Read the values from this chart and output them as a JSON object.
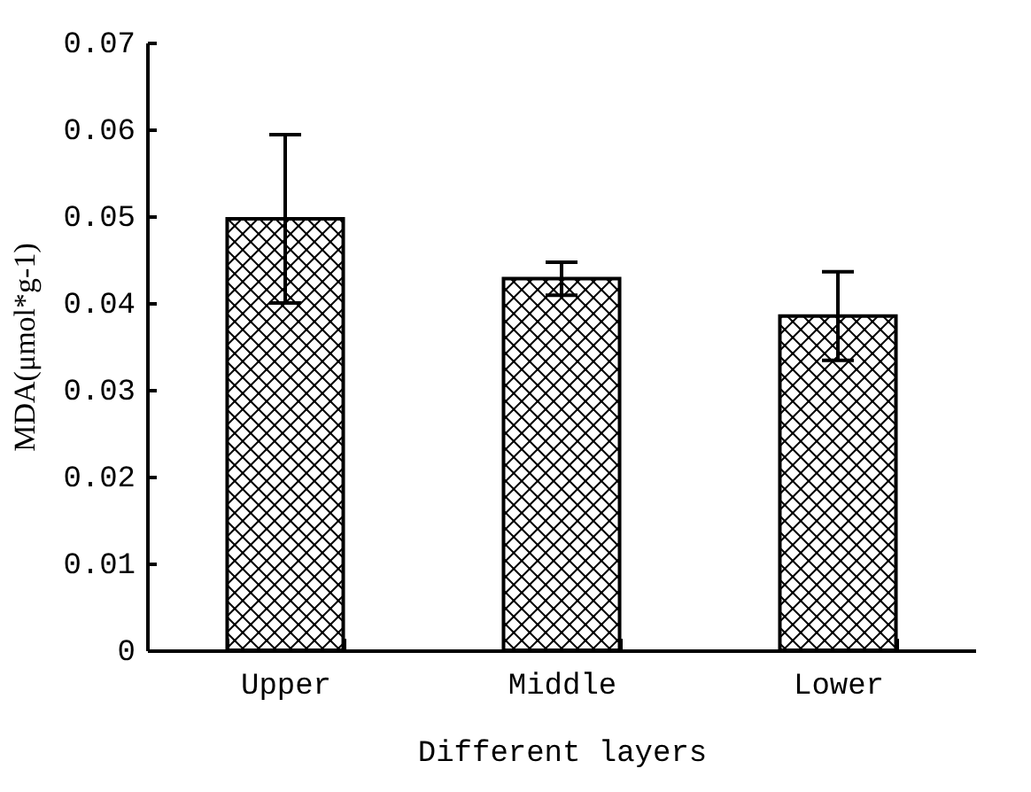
{
  "chart_data": {
    "type": "bar",
    "xlabel": "Different layers",
    "ylabel": "MDA(μmol*g-1)",
    "categories": [
      "Upper",
      "Middle",
      "Lower"
    ],
    "values": [
      0.0497,
      0.0428,
      0.0385
    ],
    "errors": [
      0.0097,
      0.0019,
      0.0051
    ],
    "color": "#000000",
    "ylim": [
      0,
      0.07
    ],
    "yticks": [
      0,
      {
        "value": 0.01,
        "label": "0.01"
      },
      {
        "value": 0.02,
        "label": "0.02"
      },
      {
        "value": 0.03,
        "label": "0.03"
      },
      {
        "value": 0.04,
        "label": "0.04"
      },
      {
        "value": 0.05,
        "label": "0.05"
      },
      {
        "value": 0.06,
        "label": "0.06"
      },
      {
        "value": 0.07,
        "label": "0.07"
      }
    ],
    "grid": false
  }
}
